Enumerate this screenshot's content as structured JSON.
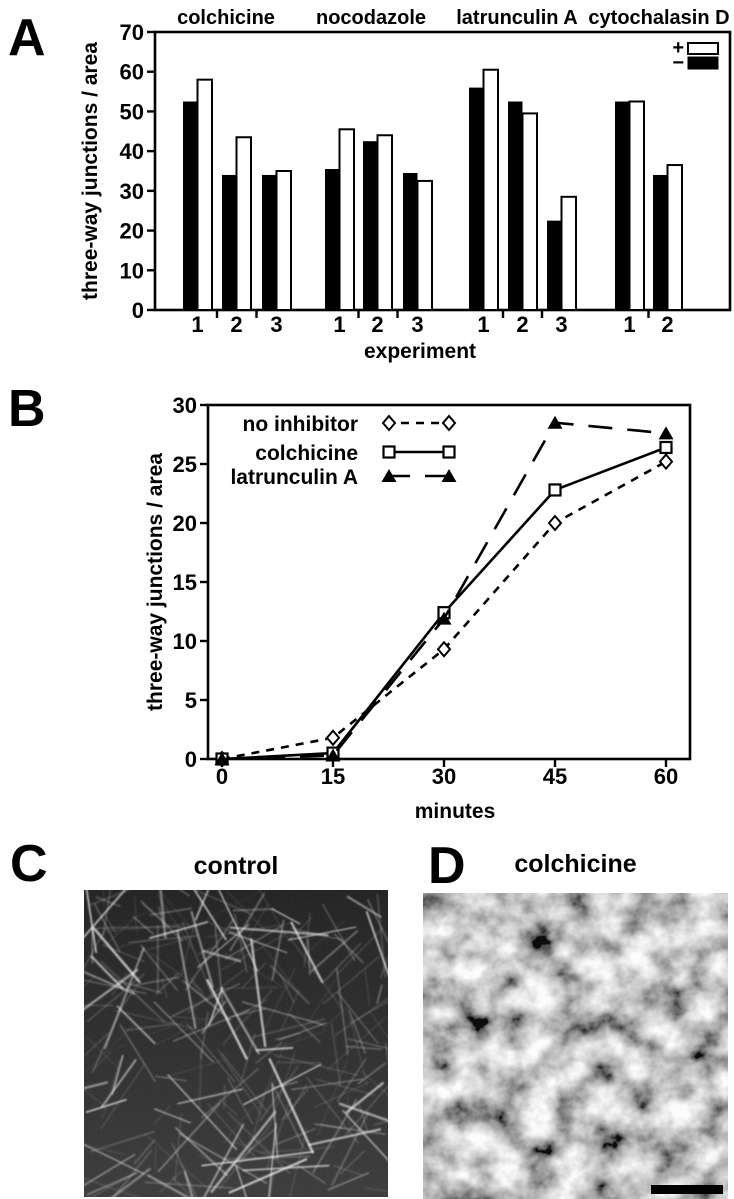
{
  "panels": {
    "a": {
      "letter": "A"
    },
    "b": {
      "letter": "B"
    },
    "c": {
      "letter": "C",
      "title": "control"
    },
    "d": {
      "letter": "D",
      "title": "colchicine"
    }
  },
  "colors": {
    "foreground": "#000000",
    "background": "#ffffff",
    "bar_minus_fill": "#000000",
    "bar_plus_fill": "#ffffff"
  },
  "chart_data": [
    {
      "id": "panel_A",
      "type": "bar",
      "title": "",
      "xlabel": "experiment",
      "ylabel": "three-way junctions / area",
      "ylim": [
        0,
        70
      ],
      "yticks": [
        0,
        10,
        20,
        30,
        40,
        50,
        60,
        70
      ],
      "grid": false,
      "legend_position": "top-right inside",
      "legend": [
        {
          "label": "+",
          "fill": "#ffffff"
        },
        {
          "label": "−",
          "fill": "#000000"
        }
      ],
      "groups": [
        {
          "name": "colchicine",
          "experiments": [
            {
              "x": "1",
              "minus": 52.5,
              "plus": 58
            },
            {
              "x": "2",
              "minus": 34,
              "plus": 43.5
            },
            {
              "x": "3",
              "minus": 34,
              "plus": 35
            }
          ]
        },
        {
          "name": "nocodazole",
          "experiments": [
            {
              "x": "1",
              "minus": 35.5,
              "plus": 45.5
            },
            {
              "x": "2",
              "minus": 42.5,
              "plus": 44
            },
            {
              "x": "3",
              "minus": 34.5,
              "plus": 32.5
            }
          ]
        },
        {
          "name": "latrunculin A",
          "experiments": [
            {
              "x": "1",
              "minus": 56,
              "plus": 60.5
            },
            {
              "x": "2",
              "minus": 52.5,
              "plus": 49.5
            },
            {
              "x": "3",
              "minus": 22.5,
              "plus": 28.5
            }
          ]
        },
        {
          "name": "cytochalasin D",
          "experiments": [
            {
              "x": "1",
              "minus": 52.5,
              "plus": 52.5
            },
            {
              "x": "2",
              "minus": 34,
              "plus": 36.5
            }
          ]
        }
      ]
    },
    {
      "id": "panel_B",
      "type": "line",
      "title": "",
      "xlabel": "minutes",
      "ylabel": "three-way junctions / area",
      "x": [
        0,
        15,
        30,
        45,
        60
      ],
      "xlim": [
        0,
        60
      ],
      "ylim": [
        0,
        30
      ],
      "yticks": [
        0,
        5,
        10,
        15,
        20,
        25,
        30
      ],
      "grid": false,
      "legend_position": "top-left inside",
      "series": [
        {
          "name": "no inhibitor",
          "marker": "diamond-open",
          "line": "dashed",
          "values": [
            0,
            1.8,
            9.3,
            20,
            25.2
          ]
        },
        {
          "name": "colchicine",
          "marker": "square-open",
          "line": "solid",
          "values": [
            0,
            0.5,
            12.4,
            22.8,
            26.4
          ]
        },
        {
          "name": "latrunculin A",
          "marker": "triangle-filled",
          "line": "long-dash",
          "values": [
            0,
            0.3,
            11.9,
            28.5,
            27.6
          ]
        }
      ]
    }
  ],
  "micrographs": {
    "c": {
      "title": "control",
      "appearance": "dense bright actin filaments on dark background"
    },
    "d": {
      "title": "colchicine",
      "appearance": "diffuse mottled gray, no filaments",
      "has_scale_bar": true
    }
  }
}
